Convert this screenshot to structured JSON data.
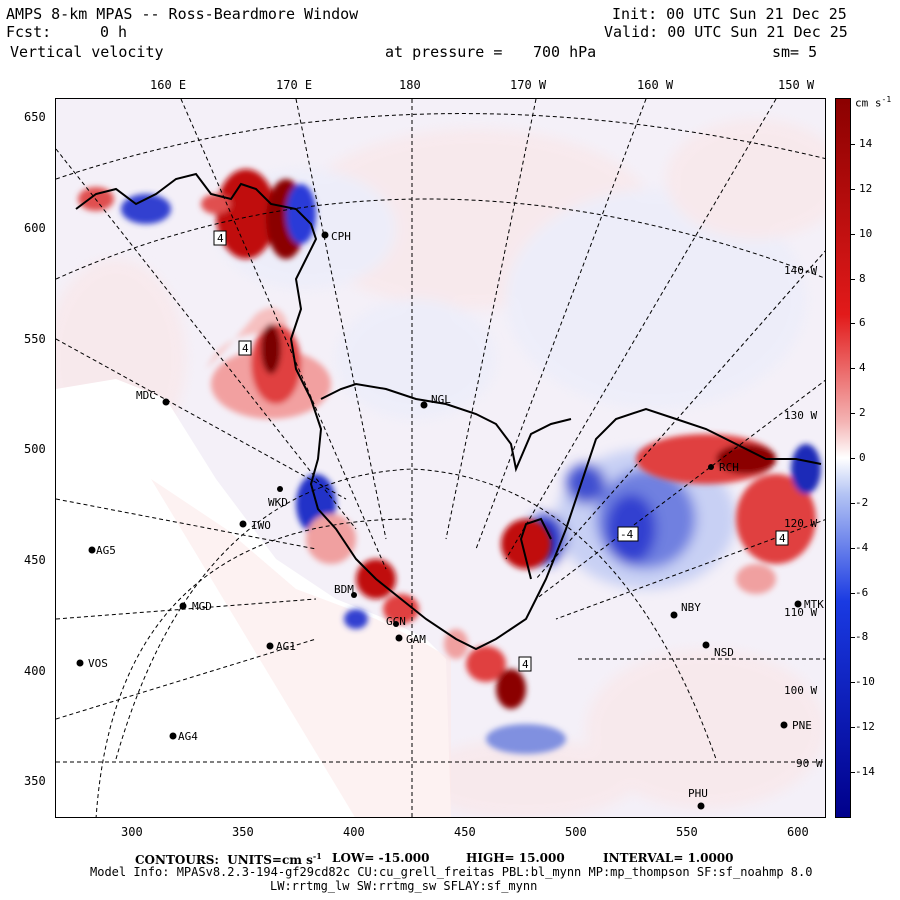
{
  "header": {
    "title": "AMPS 8-km MPAS -- Ross-Beardmore Window",
    "init": "Init: 00 UTC Sun 21 Dec 25",
    "fcst_label": "Fcst:",
    "fcst_value": "0 h",
    "valid": "Valid: 00 UTC Sun 21 Dec 25",
    "field": "Vertical velocity",
    "pressure_label": "at pressure =",
    "pressure_value": "700 hPa",
    "smooth": "sm= 5"
  },
  "top_axis_labels": [
    "160 E",
    "170 E",
    "180",
    "170 W",
    "160 W",
    "150 W"
  ],
  "left_axis_labels": [
    "650",
    "600",
    "550",
    "500",
    "450",
    "400",
    "350"
  ],
  "bottom_axis_labels": [
    "300",
    "350",
    "400",
    "450",
    "500",
    "550",
    "600"
  ],
  "lon_labels_right": [
    "140 W",
    "130 W",
    "120 W",
    "110 W",
    "100 W",
    "90 W"
  ],
  "stations": [
    {
      "name": "CPH"
    },
    {
      "name": "MDC"
    },
    {
      "name": "NGL"
    },
    {
      "name": "WKD"
    },
    {
      "name": "IWO"
    },
    {
      "name": "AG5"
    },
    {
      "name": "MGD"
    },
    {
      "name": "BDM"
    },
    {
      "name": "GCN"
    },
    {
      "name": "GAM"
    },
    {
      "name": "AG1"
    },
    {
      "name": "VOS"
    },
    {
      "name": "AG4"
    },
    {
      "name": "NBY"
    },
    {
      "name": "NSD"
    },
    {
      "name": "PNE"
    },
    {
      "name": "MTK"
    },
    {
      "name": "PHU"
    },
    {
      "name": "RCH"
    }
  ],
  "colorbar": {
    "units": "cm s",
    "units_sup": "-1",
    "labels": [
      "14",
      "12",
      "10",
      "8",
      "6",
      "4",
      "2",
      "0",
      "-2",
      "-4",
      "-6",
      "-8",
      "-10",
      "-12",
      "-14"
    ],
    "colors": {
      "dark_red": "#8b0000",
      "red": "#e21a1a",
      "light_red": "#f4b4b4",
      "white": "#ffffff",
      "light_blue": "#b4c4f4",
      "blue": "#1a3ae2",
      "dark_blue": "#00008b"
    }
  },
  "contour_label": "4",
  "contour_label_neg": "-4",
  "footer": {
    "contours": "CONTOURS:  UNITS=cm s",
    "contours_sup": "-1",
    "low": "LOW= -15.000",
    "high": "HIGH= 15.000",
    "interval": "INTERVAL= 1.0000",
    "model_info": "Model Info: MPASv8.2.3-194-gf29cd82c CU:cu_grell_freitas PBL:bl_mynn MP:mp_thompson SF:sf_noahmp 8.0",
    "model_info2": "LW:rrtmg_lw SW:rrtmg_sw SFLAY:sf_mynn"
  }
}
